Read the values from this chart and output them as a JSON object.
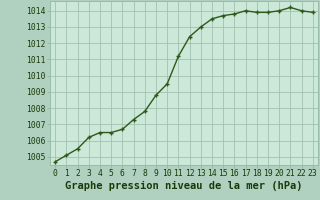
{
  "x": [
    0,
    1,
    2,
    3,
    4,
    5,
    6,
    7,
    8,
    9,
    10,
    11,
    12,
    13,
    14,
    15,
    16,
    17,
    18,
    19,
    20,
    21,
    22,
    23
  ],
  "y": [
    1004.7,
    1005.1,
    1005.5,
    1006.2,
    1006.5,
    1006.5,
    1006.7,
    1007.3,
    1007.8,
    1008.8,
    1009.5,
    1011.2,
    1012.4,
    1013.0,
    1013.5,
    1013.7,
    1013.8,
    1014.0,
    1013.9,
    1013.9,
    1014.0,
    1014.2,
    1014.0,
    1013.9
  ],
  "ylim": [
    1004.5,
    1014.6
  ],
  "yticks": [
    1005,
    1006,
    1007,
    1008,
    1009,
    1010,
    1011,
    1012,
    1013,
    1014
  ],
  "xticks": [
    0,
    1,
    2,
    3,
    4,
    5,
    6,
    7,
    8,
    9,
    10,
    11,
    12,
    13,
    14,
    15,
    16,
    17,
    18,
    19,
    20,
    21,
    22,
    23
  ],
  "xlabel": "Graphe pression niveau de la mer (hPa)",
  "line_color": "#2d5a1b",
  "marker_color": "#2d5a1b",
  "plot_bg_color": "#cce8d8",
  "fig_bg_color": "#b0d0c0",
  "grid_color": "#99bbaa",
  "text_color": "#1a3a0a",
  "tick_label_fontsize": 5.8,
  "xlabel_fontsize": 7.5,
  "line_width": 1.0,
  "marker_size": 3.5
}
